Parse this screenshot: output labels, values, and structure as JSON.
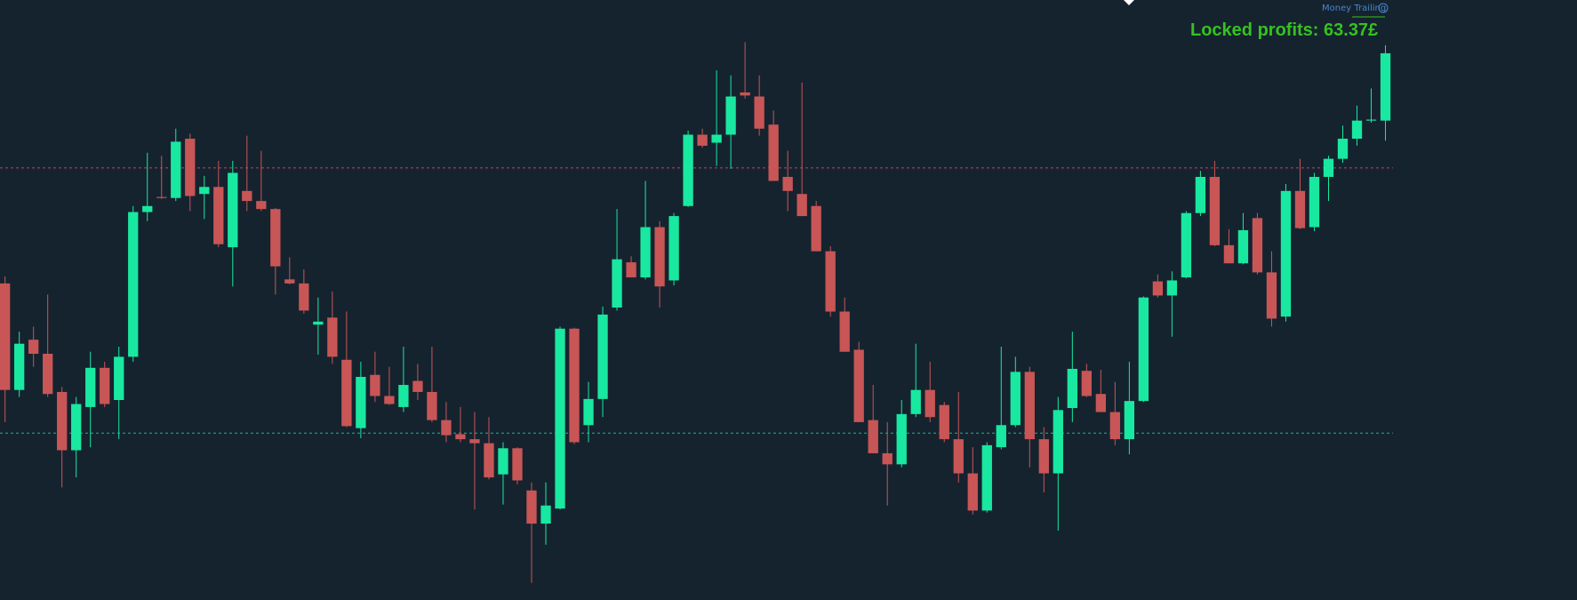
{
  "chart_data": {
    "type": "candlestick",
    "up_color": "#19e8a0",
    "down_color": "#c85656",
    "ylim": [
      0,
      597
    ],
    "label_small": "Money Trailing",
    "label_profit": "Locked profits: 63.37£",
    "hlines": [
      {
        "value": 430,
        "color": "#c2405c"
      },
      {
        "value": 166,
        "color": "#19b890"
      }
    ],
    "open": [
      315,
      209,
      259,
      245,
      207,
      149,
      192,
      231,
      199,
      242,
      386,
      401,
      400,
      459,
      404,
      411,
      351,
      407,
      397,
      389,
      319,
      315,
      274,
      281,
      239,
      171,
      224,
      203,
      192,
      218,
      207,
      179,
      165,
      160,
      156,
      125,
      151,
      109,
      76,
      91,
      270,
      174,
      200,
      291,
      336,
      321,
      371,
      318,
      392,
      463,
      455,
      463,
      505,
      501,
      473,
      421,
      404,
      392,
      347,
      287,
      249,
      179,
      146,
      135,
      185,
      209,
      194,
      160,
      126,
      89,
      152,
      174,
      227,
      160,
      126,
      191,
      228,
      205,
      187,
      160,
      198,
      317,
      303,
      321,
      385,
      421,
      353,
      335,
      380,
      326,
      282,
      407,
      371,
      421,
      439,
      459,
      477,
      477
    ],
    "high": [
      322,
      267,
      272,
      304,
      212,
      202,
      247,
      237,
      252,
      392,
      445,
      442,
      469,
      464,
      422,
      437,
      437,
      462,
      447,
      390,
      341,
      329,
      301,
      307,
      287,
      237,
      247,
      232,
      252,
      235,
      252,
      197,
      192,
      187,
      182,
      157,
      152,
      117,
      117,
      272,
      271,
      217,
      292,
      389,
      342,
      417,
      377,
      385,
      467,
      469,
      527,
      522,
      555,
      522,
      487,
      447,
      515,
      397,
      352,
      301,
      257,
      214,
      177,
      199,
      255,
      237,
      197,
      207,
      152,
      157,
      252,
      242,
      232,
      172,
      202,
      267,
      235,
      229,
      217,
      237,
      302,
      324,
      327,
      387,
      427,
      437,
      369,
      385,
      385,
      347,
      414,
      439,
      425,
      442,
      472,
      492,
      509,
      552
    ],
    "low": [
      177,
      202,
      232,
      202,
      112,
      122,
      152,
      192,
      160,
      237,
      377,
      399,
      397,
      387,
      379,
      351,
      312,
      387,
      387,
      304,
      314,
      285,
      244,
      235,
      172,
      161,
      197,
      194,
      187,
      199,
      177,
      157,
      157,
      90,
      120,
      95,
      115,
      17,
      55,
      90,
      155,
      157,
      182,
      288,
      321,
      319,
      291,
      313,
      391,
      450,
      432,
      429,
      499,
      462,
      417,
      387,
      382,
      347,
      282,
      247,
      177,
      147,
      94,
      132,
      182,
      177,
      157,
      117,
      85,
      87,
      150,
      172,
      132,
      107,
      69,
      177,
      202,
      187,
      154,
      145,
      197,
      301,
      262,
      320,
      382,
      352,
      335,
      334,
      324,
      272,
      277,
      369,
      367,
      397,
      435,
      452,
      475,
      457
    ],
    "close": [
      209,
      255,
      245,
      205,
      149,
      195,
      231,
      195,
      242,
      386,
      392,
      400,
      456,
      402,
      411,
      354,
      425,
      397,
      389,
      332,
      315,
      288,
      277,
      242,
      173,
      222,
      203,
      195,
      214,
      207,
      179,
      164,
      160,
      156,
      122,
      151,
      119,
      76,
      94,
      270,
      157,
      200,
      284,
      339,
      321,
      371,
      312,
      382,
      463,
      452,
      463,
      501,
      502,
      469,
      417,
      407,
      382,
      347,
      287,
      247,
      177,
      146,
      135,
      185,
      209,
      182,
      160,
      126,
      89,
      154,
      174,
      227,
      160,
      126,
      189,
      230,
      203,
      187,
      160,
      198,
      301,
      303,
      318,
      385,
      421,
      353,
      335,
      368,
      326,
      280,
      407,
      370,
      421,
      439,
      459,
      477,
      478,
      544
    ]
  }
}
